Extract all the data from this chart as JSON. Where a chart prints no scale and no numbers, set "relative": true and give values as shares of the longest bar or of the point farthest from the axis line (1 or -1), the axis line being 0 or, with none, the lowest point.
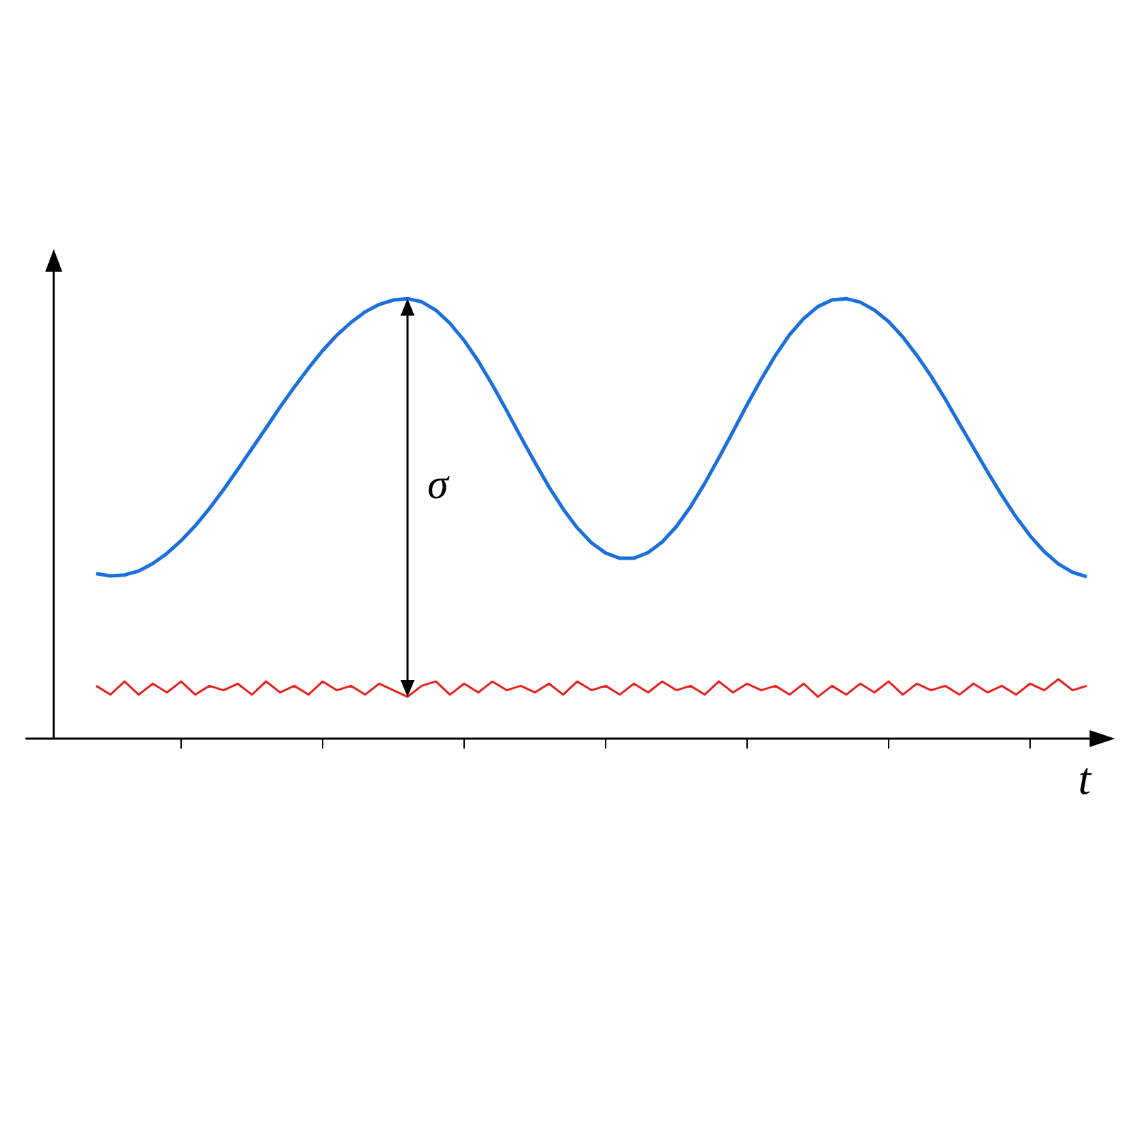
{
  "chart_data": {
    "type": "line",
    "relative": true,
    "xlabel": "t",
    "annotations": [
      "σ"
    ],
    "categories": [
      null,
      null,
      null,
      null,
      null,
      null,
      null,
      null,
      null,
      null,
      null,
      null,
      null,
      null,
      null,
      null,
      null,
      null,
      null,
      null,
      null,
      null,
      null,
      null,
      null,
      null,
      null,
      null,
      null,
      null,
      null,
      null,
      null,
      null,
      null,
      null,
      null,
      null,
      null,
      null,
      null,
      null,
      null,
      null,
      null,
      null,
      null,
      null,
      null,
      null,
      null,
      null,
      null,
      null,
      null,
      null,
      null,
      null,
      null,
      null,
      null,
      null,
      null,
      null,
      null,
      null,
      null,
      null,
      null,
      null,
      null
    ],
    "series": [
      {
        "color": "#1a6fdc",
        "values": [
          0.375,
          0.37,
          0.372,
          0.381,
          0.398,
          0.421,
          0.45,
          0.484,
          0.523,
          0.566,
          0.612,
          0.659,
          0.706,
          0.754,
          0.799,
          0.842,
          0.882,
          0.917,
          0.946,
          0.97,
          0.987,
          0.997,
          1.0,
          0.993,
          0.974,
          0.944,
          0.905,
          0.858,
          0.804,
          0.746,
          0.686,
          0.628,
          0.572,
          0.522,
          0.479,
          0.445,
          0.422,
          0.41,
          0.41,
          0.423,
          0.447,
          0.482,
          0.527,
          0.58,
          0.638,
          0.698,
          0.759,
          0.817,
          0.871,
          0.918,
          0.955,
          0.982,
          0.997,
          1.0,
          0.992,
          0.974,
          0.948,
          0.913,
          0.871,
          0.824,
          0.772,
          0.716,
          0.661,
          0.606,
          0.553,
          0.504,
          0.461,
          0.425,
          0.397,
          0.378,
          0.368
        ]
      },
      {
        "color": "#e8201c",
        "values": [
          0.12,
          0.1,
          0.13,
          0.1,
          0.125,
          0.105,
          0.13,
          0.1,
          0.12,
          0.11,
          0.125,
          0.1,
          0.13,
          0.105,
          0.12,
          0.1,
          0.13,
          0.11,
          0.12,
          0.1,
          0.125,
          0.11,
          0.095,
          0.12,
          0.13,
          0.1,
          0.125,
          0.105,
          0.13,
          0.11,
          0.12,
          0.105,
          0.125,
          0.1,
          0.13,
          0.11,
          0.12,
          0.1,
          0.125,
          0.105,
          0.13,
          0.11,
          0.12,
          0.1,
          0.13,
          0.105,
          0.125,
          0.11,
          0.12,
          0.1,
          0.125,
          0.095,
          0.12,
          0.1,
          0.125,
          0.105,
          0.13,
          0.1,
          0.125,
          0.11,
          0.12,
          0.1,
          0.125,
          0.105,
          0.12,
          0.1,
          0.125,
          0.11,
          0.135,
          0.11,
          0.12
        ]
      }
    ]
  }
}
